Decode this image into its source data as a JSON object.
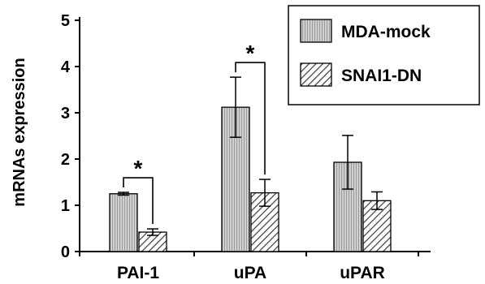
{
  "chart_data": {
    "type": "bar",
    "categories": [
      "PAI-1",
      "uPA",
      "uPAR"
    ],
    "series": [
      {
        "name": "MDA-mock",
        "values": [
          1.25,
          3.12,
          1.93
        ],
        "errors": [
          0.03,
          0.65,
          0.58
        ],
        "fill": "#c8c8c8",
        "pattern": "vertical-lines"
      },
      {
        "name": "SNAI1-DN",
        "values": [
          0.42,
          1.27,
          1.1
        ],
        "errors": [
          0.07,
          0.29,
          0.19
        ],
        "fill": "#ffffff",
        "pattern": "diagonal-hatch"
      }
    ],
    "ylabel": "mRNAs expression",
    "ylim": [
      0,
      5
    ],
    "yticks": [
      0,
      1,
      2,
      3,
      4,
      5
    ],
    "legend": "top-right",
    "grid": false,
    "significance": [
      {
        "category": "PAI-1",
        "label": "*"
      },
      {
        "category": "uPA",
        "label": "*"
      }
    ]
  }
}
